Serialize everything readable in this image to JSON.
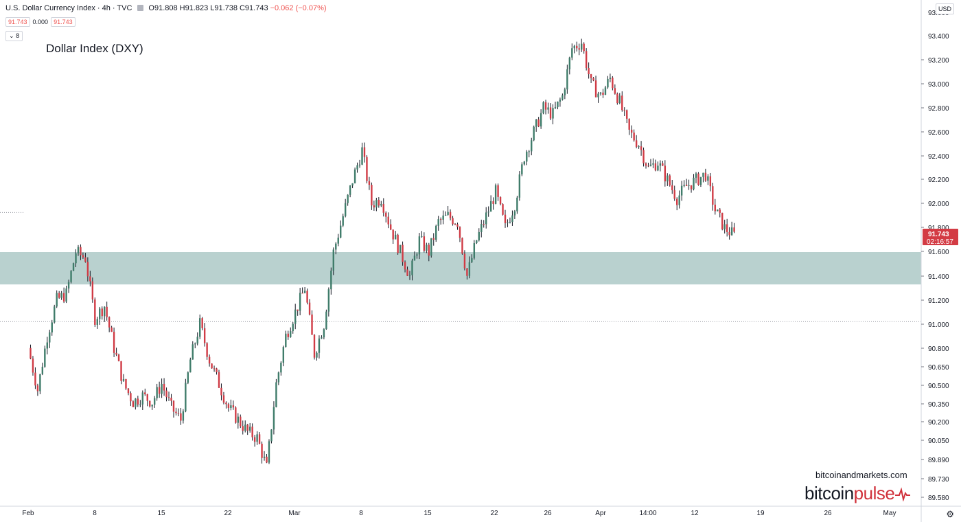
{
  "header": {
    "symbol": "U.S. Dollar Currency Index · 4h · TVC",
    "open": "O91.808",
    "high": "H91.823",
    "low": "L91.738",
    "close": "C91.743",
    "change": "−0.062 (−0.07%)",
    "box_bid": "91.743",
    "box_spread": "0.000",
    "box_ask": "91.743",
    "indicator_count": "8",
    "currency": "USD"
  },
  "chart_data": {
    "type": "candlestick",
    "title": "Dollar Index (DXY)",
    "y_ticks": [
      "93.400",
      "93.200",
      "93.000",
      "92.800",
      "92.600",
      "92.400",
      "92.200",
      "92.000",
      "91.800",
      "91.600",
      "91.400",
      "91.200",
      "91.000",
      "90.800",
      "90.650",
      "90.500",
      "90.350",
      "90.200",
      "90.050",
      "89.890",
      "89.730",
      "89.580"
    ],
    "y_tick_top": "93.600",
    "x_ticks": [
      "Feb",
      "8",
      "15",
      "22",
      "Mar",
      "8",
      "15",
      "22",
      "26",
      "Apr",
      "14:00",
      "12",
      "19",
      "26",
      "May"
    ],
    "last_price": "91.743",
    "countdown": "02:16:57",
    "support_zone": [
      91.33,
      91.6
    ],
    "horizontal_line": 91.02,
    "dotted_level": 91.93,
    "price_path": [
      [
        "Feb 1",
        90.8
      ],
      [
        "Feb 2",
        90.45
      ],
      [
        "Feb 3",
        90.9
      ],
      [
        "Feb 4",
        91.2
      ],
      [
        "Feb 5",
        91.25
      ],
      [
        "Feb 6",
        91.6
      ],
      [
        "Feb 7",
        91.55
      ],
      [
        "Feb 8",
        91.05
      ],
      [
        "Feb 9",
        91.15
      ],
      [
        "Feb 10",
        90.8
      ],
      [
        "Feb 11",
        90.5
      ],
      [
        "Feb 12",
        90.35
      ],
      [
        "Feb 13",
        90.4
      ],
      [
        "Feb 14",
        90.35
      ],
      [
        "Feb 15",
        90.5
      ],
      [
        "Feb 16",
        90.3
      ],
      [
        "Feb 17",
        90.2
      ],
      [
        "Feb 18",
        90.7
      ],
      [
        "Feb 19",
        91.0
      ],
      [
        "Feb 20",
        90.7
      ],
      [
        "Feb 21",
        90.5
      ],
      [
        "Feb 22",
        90.3
      ],
      [
        "Feb 23",
        90.2
      ],
      [
        "Feb 24",
        90.1
      ],
      [
        "Feb 25",
        90.05
      ],
      [
        "Feb 26",
        89.8
      ],
      [
        "Feb 27",
        90.5
      ],
      [
        "Feb 28",
        90.9
      ],
      [
        "Mar 1",
        91.1
      ],
      [
        "Mar 2",
        91.3
      ],
      [
        "Mar 3",
        90.75
      ],
      [
        "Mar 4",
        91.0
      ],
      [
        "Mar 5",
        91.6
      ],
      [
        "Mar 6",
        91.9
      ],
      [
        "Mar 7",
        92.2
      ],
      [
        "Mar 8",
        92.45
      ],
      [
        "Mar 9",
        92.0
      ],
      [
        "Mar 10",
        92.05
      ],
      [
        "Mar 11",
        91.8
      ],
      [
        "Mar 12",
        91.6
      ],
      [
        "Mar 13",
        91.4
      ],
      [
        "Mar 14",
        91.7
      ],
      [
        "Mar 15",
        91.6
      ],
      [
        "Mar 16",
        91.85
      ],
      [
        "Mar 17",
        91.9
      ],
      [
        "Mar 18",
        91.85
      ],
      [
        "Mar 19",
        91.4
      ],
      [
        "Mar 20",
        91.7
      ],
      [
        "Mar 21",
        91.9
      ],
      [
        "Mar 22",
        92.1
      ],
      [
        "Mar 23",
        91.8
      ],
      [
        "Mar 24",
        92.0
      ],
      [
        "Mar 25",
        92.4
      ],
      [
        "Mar 26",
        92.6
      ],
      [
        "Mar 27",
        92.8
      ],
      [
        "Mar 28",
        92.75
      ],
      [
        "Mar 29",
        92.9
      ],
      [
        "Mar 30",
        93.3
      ],
      [
        "Mar 31",
        93.35
      ],
      [
        "Apr 1",
        93.0
      ],
      [
        "Apr 2",
        92.9
      ],
      [
        "Apr 3",
        93.05
      ],
      [
        "Apr 4",
        92.85
      ],
      [
        "Apr 5",
        92.6
      ],
      [
        "Apr 6",
        92.5
      ],
      [
        "Apr 7",
        92.3
      ],
      [
        "Apr 8",
        92.35
      ],
      [
        "Apr 9",
        92.2
      ],
      [
        "Apr 10",
        92.05
      ],
      [
        "Apr 11",
        92.15
      ],
      [
        "Apr 12",
        92.2
      ],
      [
        "Apr 13",
        92.25
      ],
      [
        "Apr 14",
        91.95
      ],
      [
        "Apr 15",
        91.8
      ],
      [
        "Apr 16",
        91.74
      ]
    ]
  },
  "watermark": {
    "site": "bitcoinandmarkets.com",
    "brand_a": "bitcoin",
    "brand_b": "pulse"
  },
  "colors": {
    "up": "#26a69a",
    "down": "#ef5350",
    "candle_up_render": "#3f7c6a",
    "candle_down_render": "#d03b45",
    "zone": "#b9d1cf",
    "price_label": "#d33b44"
  }
}
